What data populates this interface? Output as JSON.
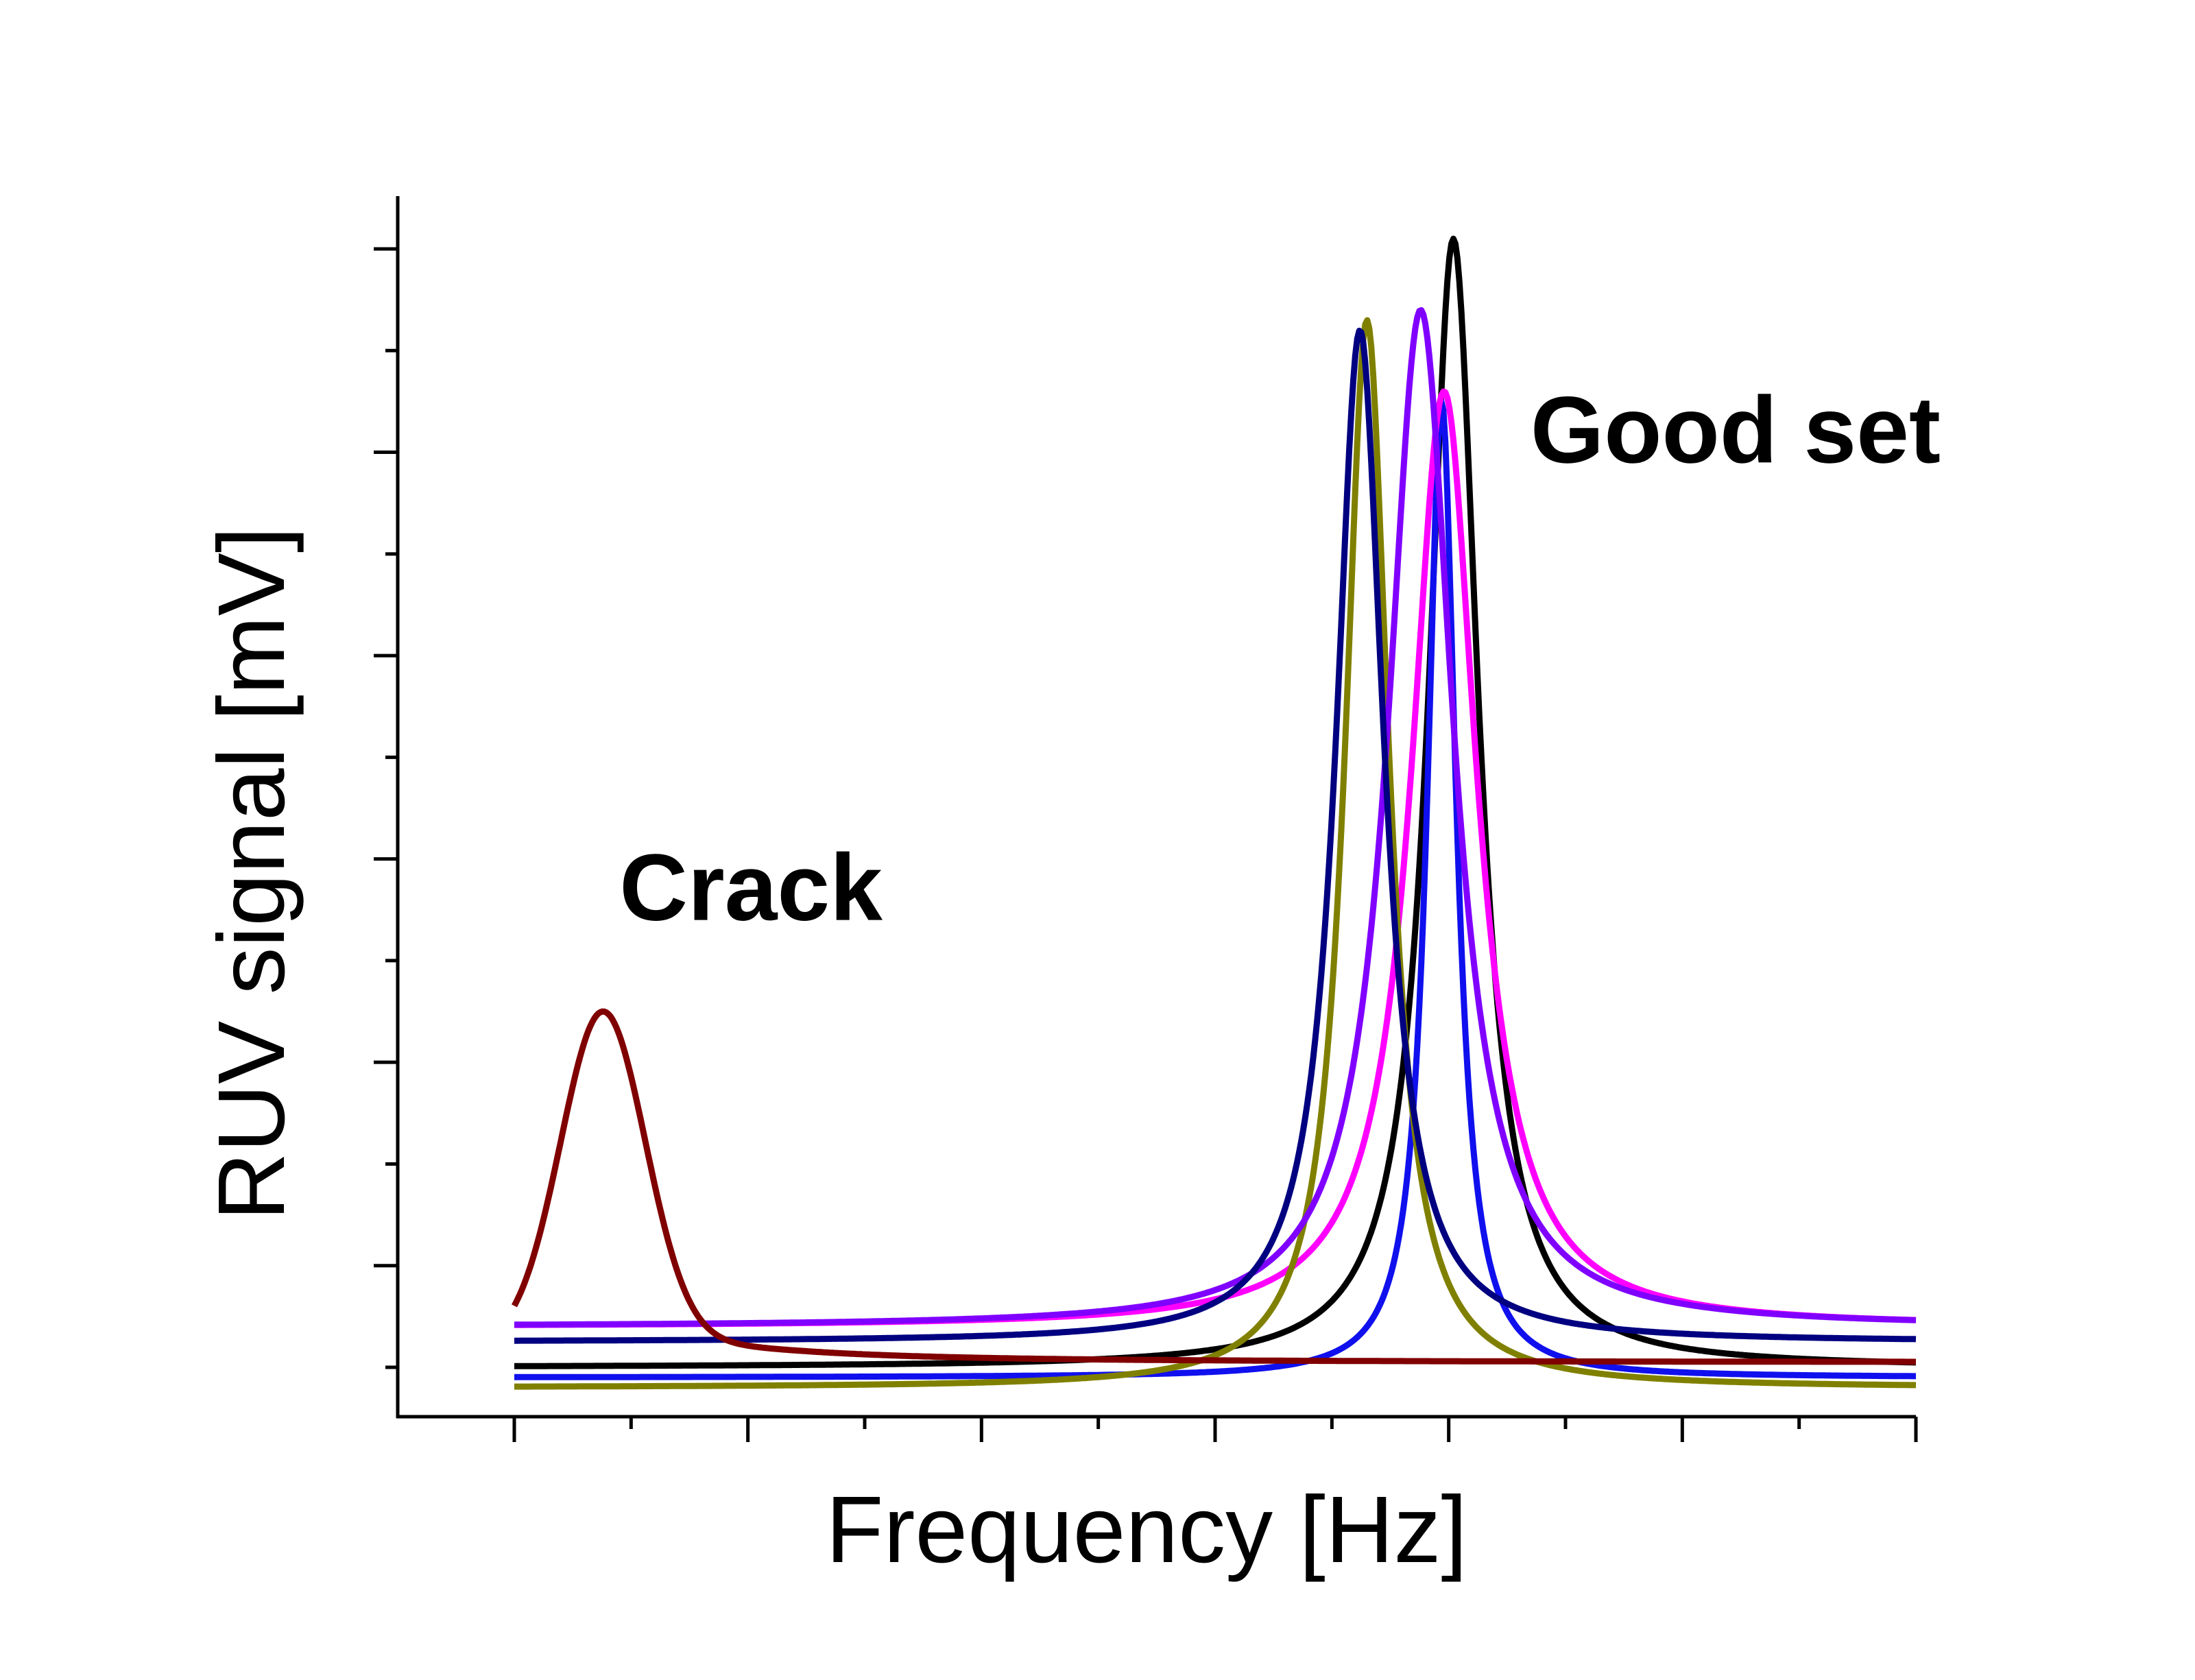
{
  "chart_data": {
    "type": "line",
    "xlabel": "Frequency [Hz]",
    "ylabel": "RUV signal [mV]",
    "xlim": [
      0,
      6
    ],
    "ylim": [
      0,
      11
    ],
    "x_major_ticks": [
      0,
      1,
      2,
      3,
      4,
      5,
      6
    ],
    "x_minor_ticks": [
      0.5,
      1.5,
      2.5,
      3.5,
      4.5,
      5.5
    ],
    "y_major_ticks": [
      1,
      3,
      5,
      7,
      9,
      11
    ],
    "y_minor_ticks": [
      0,
      2,
      4,
      6,
      8,
      10
    ],
    "grid": false,
    "annotations": [
      {
        "text": "Crack",
        "x": 0.45,
        "y": 4.4
      },
      {
        "text": "Good set",
        "x": 4.35,
        "y": 8.9
      }
    ],
    "series": [
      {
        "color": "#000000",
        "peak_x": 4.02,
        "peak_y": 11.1,
        "halfwidth": 0.13,
        "baseline": 0.0
      },
      {
        "color": "#1010ee",
        "peak_x": 3.97,
        "peak_y": 9.5,
        "halfwidth": 0.075,
        "baseline": -0.1
      },
      {
        "color": "#ff00ff",
        "peak_x": 3.98,
        "peak_y": 9.6,
        "halfwidth": 0.17,
        "baseline": 0.4
      },
      {
        "color": "#808000",
        "peak_x": 3.65,
        "peak_y": 10.3,
        "halfwidth": 0.115,
        "baseline": -0.2
      },
      {
        "color": "#8000ff",
        "peak_x": 3.88,
        "peak_y": 10.4,
        "halfwidth": 0.17,
        "baseline": 0.4
      },
      {
        "color": "#000080",
        "peak_x": 3.62,
        "peak_y": 10.2,
        "halfwidth": 0.125,
        "baseline": 0.25
      },
      {
        "color": "#800000",
        "type": "crack",
        "peak_x": 0.38,
        "peak_y": 3.5,
        "width": 0.18,
        "baseline": 0.05
      }
    ]
  }
}
